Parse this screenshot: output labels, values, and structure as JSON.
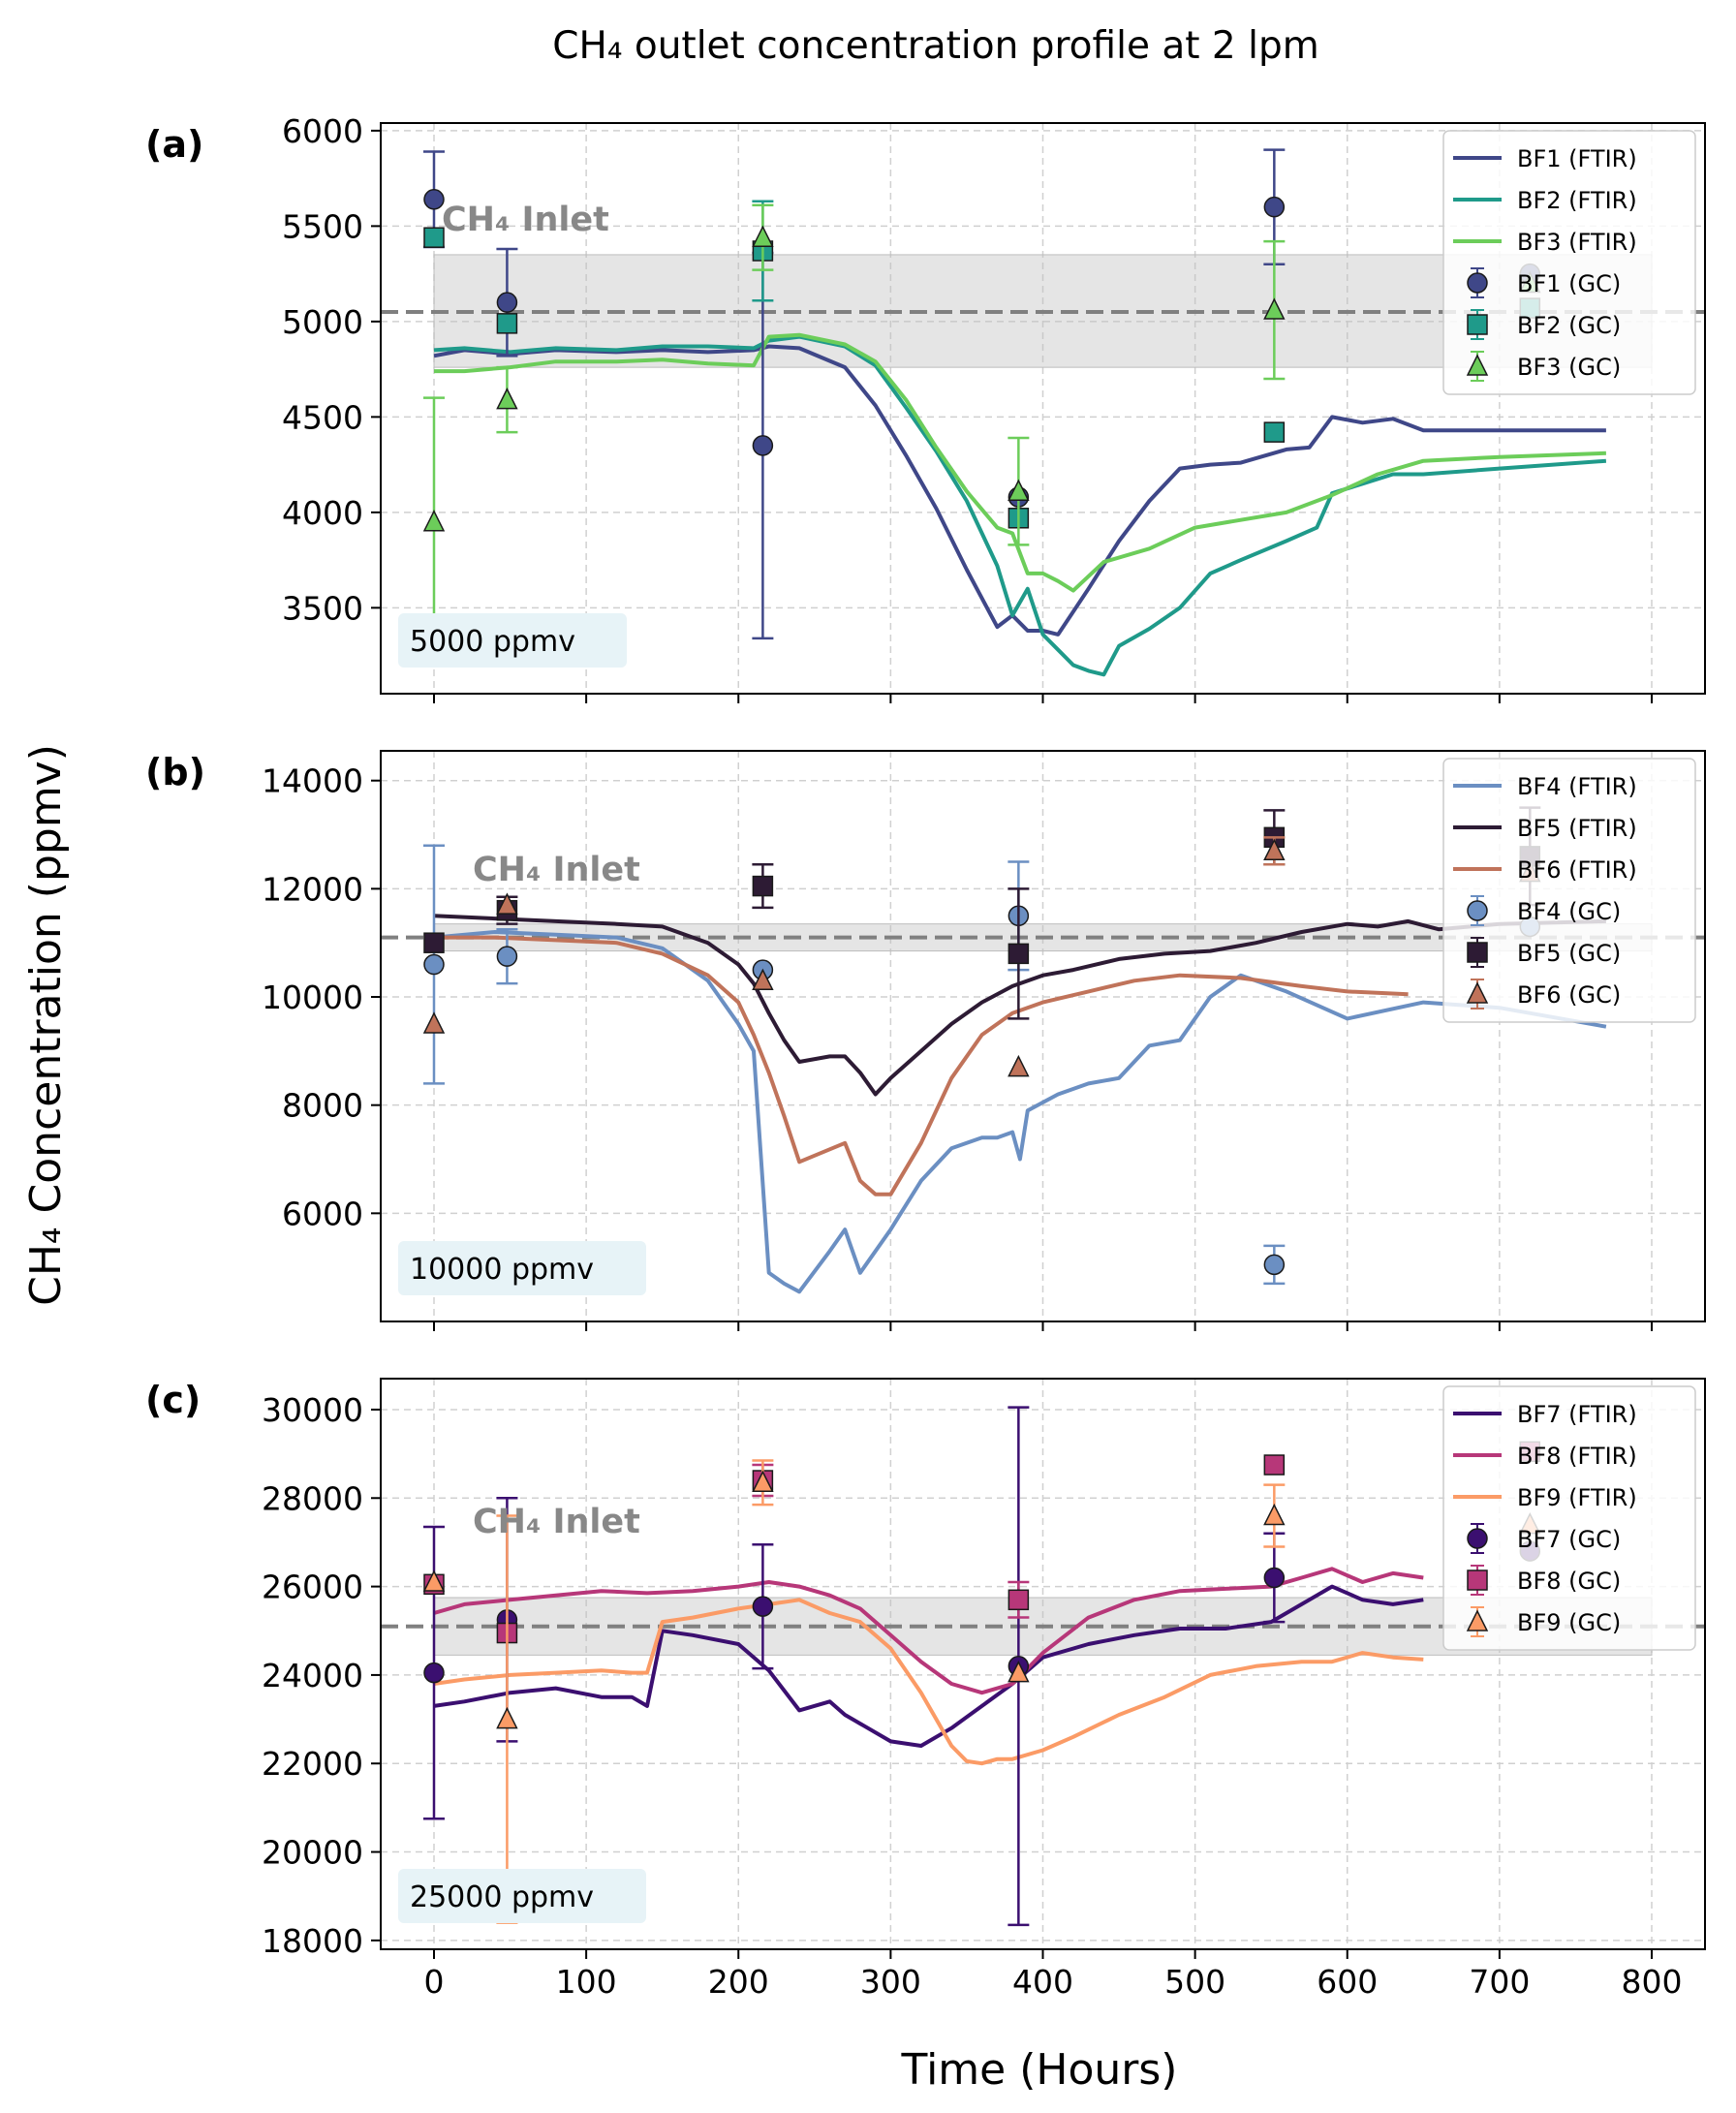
{
  "title": "CH₄ outlet concentration profile at 2 lpm",
  "chart_data": [
    {
      "type": "line",
      "panel_tag": "(a)",
      "concentration_label": "5000 ppmv",
      "inlet_label": "CH₄ Inlet",
      "inlet_value": 5050,
      "inlet_band": [
        4760,
        5350
      ],
      "xlabel": "Time (Hours)",
      "ylabel": "CH₄ Concentration (ppmv)",
      "xlim": [
        -35,
        835
      ],
      "ylim": [
        3050,
        6040
      ],
      "xticks": [
        0,
        100,
        200,
        300,
        400,
        500,
        600,
        700,
        800
      ],
      "yticks": [
        3500,
        4000,
        4500,
        5000,
        5500,
        6000
      ],
      "show_x_tick_labels": false,
      "grid": true,
      "legend_position": "top-right",
      "series": [
        {
          "name": "BF1 (FTIR)",
          "kind": "line",
          "color": "#3f4788",
          "x": [
            0,
            20,
            50,
            80,
            120,
            150,
            180,
            210,
            220,
            240,
            270,
            290,
            310,
            330,
            350,
            370,
            380,
            390,
            400,
            410,
            430,
            450,
            470,
            490,
            510,
            530,
            560,
            575,
            590,
            610,
            630,
            650,
            700,
            770
          ],
          "y": [
            4820,
            4850,
            4830,
            4850,
            4840,
            4850,
            4840,
            4850,
            4870,
            4860,
            4760,
            4560,
            4300,
            4020,
            3700,
            3400,
            3460,
            3380,
            3380,
            3360,
            3600,
            3850,
            4060,
            4230,
            4250,
            4260,
            4330,
            4340,
            4500,
            4470,
            4490,
            4430,
            4430,
            4430
          ]
        },
        {
          "name": "BF2 (FTIR)",
          "kind": "line",
          "color": "#1f9a8a",
          "x": [
            0,
            20,
            50,
            80,
            120,
            150,
            180,
            210,
            220,
            240,
            270,
            290,
            310,
            330,
            350,
            370,
            380,
            390,
            400,
            410,
            420,
            430,
            440,
            450,
            470,
            490,
            510,
            530,
            560,
            580,
            590,
            610,
            630,
            650,
            700,
            770
          ],
          "y": [
            4850,
            4860,
            4840,
            4860,
            4850,
            4870,
            4870,
            4860,
            4900,
            4920,
            4870,
            4770,
            4550,
            4320,
            4060,
            3720,
            3460,
            3600,
            3360,
            3280,
            3200,
            3170,
            3150,
            3300,
            3390,
            3500,
            3680,
            3750,
            3850,
            3920,
            4100,
            4150,
            4200,
            4200,
            4230,
            4270
          ]
        },
        {
          "name": "BF3 (FTIR)",
          "kind": "line",
          "color": "#6ccd5a",
          "x": [
            0,
            20,
            50,
            80,
            120,
            150,
            180,
            210,
            220,
            240,
            270,
            290,
            310,
            330,
            350,
            370,
            380,
            390,
            400,
            410,
            420,
            440,
            470,
            500,
            530,
            560,
            590,
            620,
            650,
            700,
            770
          ],
          "y": [
            4740,
            4740,
            4760,
            4790,
            4790,
            4800,
            4780,
            4770,
            4920,
            4930,
            4880,
            4790,
            4590,
            4340,
            4110,
            3920,
            3890,
            3680,
            3680,
            3640,
            3590,
            3740,
            3810,
            3920,
            3960,
            4000,
            4090,
            4200,
            4270,
            4290,
            4310
          ]
        },
        {
          "name": "BF1 (GC)",
          "kind": "scatter",
          "marker": "circle",
          "color": "#3f4788",
          "x": [
            0,
            48,
            216,
            384,
            552,
            720
          ],
          "y": [
            5640,
            5100,
            4350,
            4080,
            5600,
            5250
          ],
          "yerr": [
            250,
            280,
            1010,
            0,
            300,
            0
          ]
        },
        {
          "name": "BF2 (GC)",
          "kind": "scatter",
          "marker": "square",
          "color": "#1f9a8a",
          "x": [
            0,
            48,
            216,
            384,
            552,
            720
          ],
          "y": [
            5440,
            4990,
            5370,
            3970,
            4420,
            5070
          ],
          "yerr": [
            0,
            0,
            260,
            0,
            0,
            0
          ]
        },
        {
          "name": "BF3 (GC)",
          "kind": "scatter",
          "marker": "triangle",
          "color": "#6ccd5a",
          "x": [
            0,
            48,
            216,
            384,
            552,
            720
          ],
          "y": [
            3950,
            4590,
            5440,
            4110,
            5060,
            5200
          ],
          "yerr": [
            650,
            170,
            170,
            280,
            360,
            0
          ]
        }
      ]
    },
    {
      "type": "line",
      "panel_tag": "(b)",
      "concentration_label": "10000 ppmv",
      "inlet_label": "CH₄ Inlet",
      "inlet_value": 11100,
      "inlet_band": [
        10850,
        11350
      ],
      "xlabel": "Time (Hours)",
      "ylabel": "CH₄ Concentration (ppmv)",
      "xlim": [
        -35,
        835
      ],
      "ylim": [
        4000,
        14550
      ],
      "xticks": [
        0,
        100,
        200,
        300,
        400,
        500,
        600,
        700,
        800
      ],
      "yticks": [
        6000,
        8000,
        10000,
        12000,
        14000
      ],
      "show_x_tick_labels": false,
      "grid": true,
      "legend_position": "top-right",
      "series": [
        {
          "name": "BF4 (FTIR)",
          "kind": "line",
          "color": "#6b8fc2",
          "x": [
            0,
            40,
            80,
            120,
            150,
            180,
            200,
            210,
            220,
            230,
            240,
            260,
            270,
            280,
            300,
            320,
            340,
            360,
            370,
            380,
            385,
            390,
            410,
            430,
            450,
            470,
            490,
            510,
            530,
            560,
            600,
            650,
            700,
            770
          ],
          "y": [
            11100,
            11200,
            11150,
            11100,
            10900,
            10300,
            9500,
            9000,
            4900,
            4700,
            4550,
            5300,
            5700,
            4900,
            5700,
            6600,
            7200,
            7400,
            7400,
            7500,
            7000,
            7900,
            8200,
            8400,
            8500,
            9100,
            9200,
            10000,
            10400,
            10100,
            9600,
            9900,
            9800,
            9450
          ]
        },
        {
          "name": "BF5 (FTIR)",
          "kind": "line",
          "color": "#2d1b34",
          "x": [
            0,
            40,
            80,
            120,
            150,
            180,
            200,
            210,
            220,
            230,
            240,
            260,
            270,
            280,
            290,
            300,
            320,
            340,
            360,
            380,
            400,
            420,
            450,
            480,
            510,
            540,
            570,
            600,
            620,
            640,
            660,
            700,
            770
          ],
          "y": [
            11500,
            11450,
            11400,
            11350,
            11300,
            11000,
            10600,
            10250,
            9700,
            9200,
            8800,
            8900,
            8900,
            8600,
            8200,
            8500,
            9000,
            9500,
            9900,
            10200,
            10400,
            10500,
            10700,
            10800,
            10850,
            11000,
            11200,
            11350,
            11300,
            11400,
            11250,
            11350,
            11400
          ]
        },
        {
          "name": "BF6 (FTIR)",
          "kind": "line",
          "color": "#c0735a",
          "x": [
            0,
            40,
            80,
            120,
            150,
            180,
            200,
            210,
            220,
            230,
            240,
            270,
            280,
            290,
            300,
            320,
            340,
            360,
            380,
            400,
            430,
            460,
            490,
            530,
            570,
            600,
            640
          ],
          "y": [
            11100,
            11100,
            11050,
            11000,
            10800,
            10400,
            9900,
            9300,
            8600,
            7800,
            6950,
            7300,
            6600,
            6350,
            6350,
            7300,
            8500,
            9300,
            9700,
            9900,
            10100,
            10300,
            10400,
            10350,
            10200,
            10100,
            10050
          ]
        },
        {
          "name": "BF4 (GC)",
          "kind": "scatter",
          "marker": "circle",
          "color": "#6b8fc2",
          "x": [
            0,
            48,
            216,
            384,
            552,
            720
          ],
          "y": [
            10600,
            10750,
            10500,
            11500,
            5050,
            11300
          ],
          "yerr": [
            2200,
            500,
            0,
            1000,
            350,
            0
          ]
        },
        {
          "name": "BF5 (GC)",
          "kind": "scatter",
          "marker": "square",
          "color": "#2d1b34",
          "x": [
            0,
            48,
            216,
            384,
            552,
            720
          ],
          "y": [
            11000,
            11600,
            12050,
            10800,
            12950,
            12600
          ],
          "yerr": [
            0,
            250,
            400,
            1200,
            500,
            900
          ]
        },
        {
          "name": "BF6 (GC)",
          "kind": "scatter",
          "marker": "triangle",
          "color": "#c0735a",
          "x": [
            0,
            48,
            216,
            384,
            552,
            720
          ],
          "y": [
            9500,
            11700,
            10300,
            8700,
            12700,
            12300
          ],
          "yerr": [
            0,
            0,
            0,
            0,
            250,
            0
          ]
        }
      ]
    },
    {
      "type": "line",
      "panel_tag": "(c)",
      "concentration_label": "25000 ppmv",
      "inlet_label": "CH₄ Inlet",
      "inlet_value": 25100,
      "inlet_band": [
        24450,
        25750
      ],
      "xlabel": "Time (Hours)",
      "ylabel": "CH₄ Concentration (ppmv)",
      "xlim": [
        -35,
        835
      ],
      "ylim": [
        17800,
        30700
      ],
      "xticks": [
        0,
        100,
        200,
        300,
        400,
        500,
        600,
        700,
        800
      ],
      "yticks": [
        18000,
        20000,
        22000,
        24000,
        26000,
        28000,
        30000
      ],
      "show_x_tick_labels": true,
      "grid": true,
      "legend_position": "top-right",
      "series": [
        {
          "name": "BF7 (FTIR)",
          "kind": "line",
          "color": "#3b0f70",
          "x": [
            0,
            20,
            50,
            80,
            110,
            130,
            140,
            150,
            170,
            200,
            220,
            240,
            260,
            270,
            280,
            300,
            320,
            340,
            360,
            380,
            400,
            430,
            460,
            490,
            520,
            550,
            570,
            590,
            610,
            630,
            650
          ],
          "y": [
            23300,
            23400,
            23600,
            23700,
            23500,
            23500,
            23300,
            25000,
            24900,
            24700,
            24100,
            23200,
            23400,
            23100,
            22900,
            22500,
            22400,
            22800,
            23300,
            23800,
            24400,
            24700,
            24900,
            25050,
            25050,
            25200,
            25600,
            26000,
            25700,
            25600,
            25700
          ]
        },
        {
          "name": "BF8 (FTIR)",
          "kind": "line",
          "color": "#b73779",
          "x": [
            0,
            20,
            50,
            80,
            110,
            140,
            170,
            200,
            220,
            240,
            260,
            280,
            300,
            320,
            340,
            360,
            380,
            400,
            430,
            460,
            490,
            520,
            550,
            570,
            590,
            610,
            630,
            650
          ],
          "y": [
            25400,
            25600,
            25700,
            25800,
            25900,
            25850,
            25900,
            26000,
            26100,
            26000,
            25800,
            25500,
            24900,
            24300,
            23800,
            23600,
            23800,
            24500,
            25300,
            25700,
            25900,
            25950,
            26000,
            26200,
            26400,
            26100,
            26300,
            26200
          ]
        },
        {
          "name": "BF9 (FTIR)",
          "kind": "line",
          "color": "#fb9b66",
          "x": [
            0,
            20,
            50,
            80,
            110,
            130,
            140,
            150,
            170,
            200,
            220,
            240,
            260,
            280,
            300,
            320,
            340,
            350,
            360,
            370,
            380,
            400,
            420,
            450,
            480,
            510,
            540,
            570,
            590,
            610,
            630,
            650
          ],
          "y": [
            23800,
            23900,
            24000,
            24050,
            24100,
            24050,
            24050,
            25200,
            25300,
            25500,
            25600,
            25700,
            25400,
            25200,
            24600,
            23600,
            22400,
            22050,
            22000,
            22100,
            22100,
            22300,
            22600,
            23100,
            23500,
            24000,
            24200,
            24300,
            24300,
            24500,
            24400,
            24350
          ]
        },
        {
          "name": "BF7 (GC)",
          "kind": "scatter",
          "marker": "circle",
          "color": "#3b0f70",
          "x": [
            0,
            48,
            216,
            384,
            552,
            720
          ],
          "y": [
            24050,
            25250,
            25550,
            24200,
            26200,
            26800
          ],
          "yerr": [
            3300,
            2750,
            1400,
            5850,
            1000,
            0
          ]
        },
        {
          "name": "BF8 (GC)",
          "kind": "scatter",
          "marker": "square",
          "color": "#b73779",
          "x": [
            0,
            48,
            216,
            384,
            552,
            720
          ],
          "y": [
            26050,
            24950,
            28400,
            25700,
            28750,
            29050
          ],
          "yerr": [
            0,
            0,
            350,
            400,
            0,
            0
          ]
        },
        {
          "name": "BF9 (GC)",
          "kind": "scatter",
          "marker": "triangle",
          "color": "#fb9b66",
          "x": [
            0,
            48,
            216,
            384,
            552,
            720
          ],
          "y": [
            26100,
            23000,
            28350,
            24050,
            27600,
            27400
          ],
          "yerr": [
            0,
            4600,
            500,
            0,
            700,
            0
          ]
        }
      ]
    }
  ]
}
